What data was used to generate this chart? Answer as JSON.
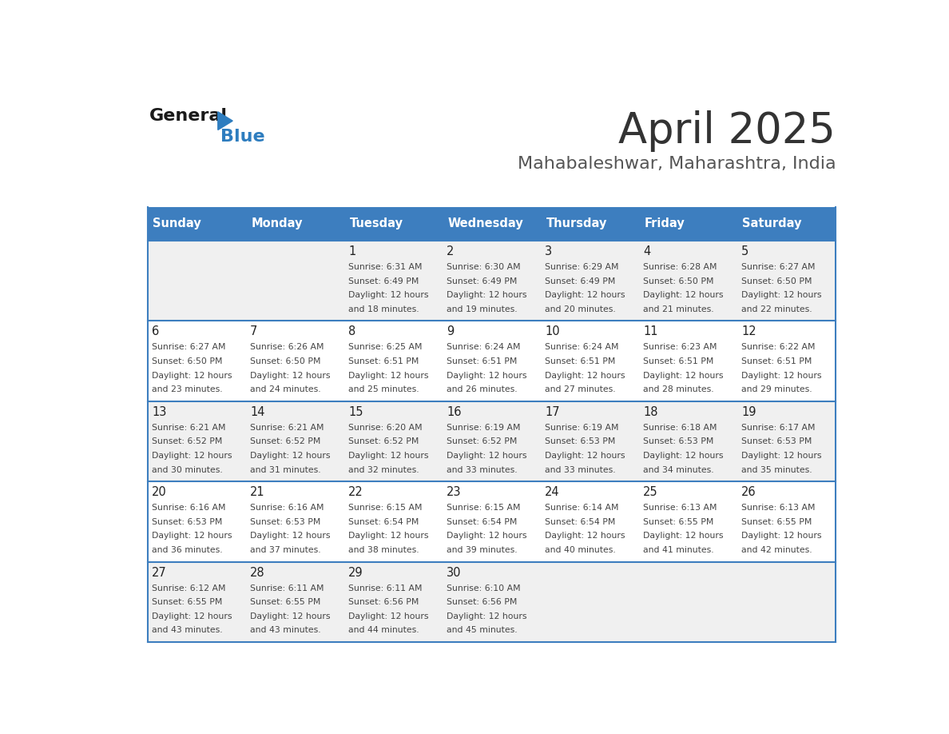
{
  "title": "April 2025",
  "subtitle": "Mahabaleshwar, Maharashtra, India",
  "days_of_week": [
    "Sunday",
    "Monday",
    "Tuesday",
    "Wednesday",
    "Thursday",
    "Friday",
    "Saturday"
  ],
  "header_bg_color": "#3d7ebf",
  "header_text_color": "#ffffff",
  "cell_bg_even": "#f0f0f0",
  "cell_bg_odd": "#ffffff",
  "row_line_color": "#3d7ebf",
  "title_color": "#333333",
  "subtitle_color": "#555555",
  "day_number_color": "#222222",
  "cell_text_color": "#444444",
  "calendar_data": [
    [
      null,
      null,
      {
        "day": 1,
        "sunrise": "6:31 AM",
        "sunset": "6:49 PM",
        "daylight_minutes": 18
      },
      {
        "day": 2,
        "sunrise": "6:30 AM",
        "sunset": "6:49 PM",
        "daylight_minutes": 19
      },
      {
        "day": 3,
        "sunrise": "6:29 AM",
        "sunset": "6:49 PM",
        "daylight_minutes": 20
      },
      {
        "day": 4,
        "sunrise": "6:28 AM",
        "sunset": "6:50 PM",
        "daylight_minutes": 21
      },
      {
        "day": 5,
        "sunrise": "6:27 AM",
        "sunset": "6:50 PM",
        "daylight_minutes": 22
      }
    ],
    [
      {
        "day": 6,
        "sunrise": "6:27 AM",
        "sunset": "6:50 PM",
        "daylight_minutes": 23
      },
      {
        "day": 7,
        "sunrise": "6:26 AM",
        "sunset": "6:50 PM",
        "daylight_minutes": 24
      },
      {
        "day": 8,
        "sunrise": "6:25 AM",
        "sunset": "6:51 PM",
        "daylight_minutes": 25
      },
      {
        "day": 9,
        "sunrise": "6:24 AM",
        "sunset": "6:51 PM",
        "daylight_minutes": 26
      },
      {
        "day": 10,
        "sunrise": "6:24 AM",
        "sunset": "6:51 PM",
        "daylight_minutes": 27
      },
      {
        "day": 11,
        "sunrise": "6:23 AM",
        "sunset": "6:51 PM",
        "daylight_minutes": 28
      },
      {
        "day": 12,
        "sunrise": "6:22 AM",
        "sunset": "6:51 PM",
        "daylight_minutes": 29
      }
    ],
    [
      {
        "day": 13,
        "sunrise": "6:21 AM",
        "sunset": "6:52 PM",
        "daylight_minutes": 30
      },
      {
        "day": 14,
        "sunrise": "6:21 AM",
        "sunset": "6:52 PM",
        "daylight_minutes": 31
      },
      {
        "day": 15,
        "sunrise": "6:20 AM",
        "sunset": "6:52 PM",
        "daylight_minutes": 32
      },
      {
        "day": 16,
        "sunrise": "6:19 AM",
        "sunset": "6:52 PM",
        "daylight_minutes": 33
      },
      {
        "day": 17,
        "sunrise": "6:19 AM",
        "sunset": "6:53 PM",
        "daylight_minutes": 33
      },
      {
        "day": 18,
        "sunrise": "6:18 AM",
        "sunset": "6:53 PM",
        "daylight_minutes": 34
      },
      {
        "day": 19,
        "sunrise": "6:17 AM",
        "sunset": "6:53 PM",
        "daylight_minutes": 35
      }
    ],
    [
      {
        "day": 20,
        "sunrise": "6:16 AM",
        "sunset": "6:53 PM",
        "daylight_minutes": 36
      },
      {
        "day": 21,
        "sunrise": "6:16 AM",
        "sunset": "6:53 PM",
        "daylight_minutes": 37
      },
      {
        "day": 22,
        "sunrise": "6:15 AM",
        "sunset": "6:54 PM",
        "daylight_minutes": 38
      },
      {
        "day": 23,
        "sunrise": "6:15 AM",
        "sunset": "6:54 PM",
        "daylight_minutes": 39
      },
      {
        "day": 24,
        "sunrise": "6:14 AM",
        "sunset": "6:54 PM",
        "daylight_minutes": 40
      },
      {
        "day": 25,
        "sunrise": "6:13 AM",
        "sunset": "6:55 PM",
        "daylight_minutes": 41
      },
      {
        "day": 26,
        "sunrise": "6:13 AM",
        "sunset": "6:55 PM",
        "daylight_minutes": 42
      }
    ],
    [
      {
        "day": 27,
        "sunrise": "6:12 AM",
        "sunset": "6:55 PM",
        "daylight_minutes": 43
      },
      {
        "day": 28,
        "sunrise": "6:11 AM",
        "sunset": "6:55 PM",
        "daylight_minutes": 43
      },
      {
        "day": 29,
        "sunrise": "6:11 AM",
        "sunset": "6:56 PM",
        "daylight_minutes": 44
      },
      {
        "day": 30,
        "sunrise": "6:10 AM",
        "sunset": "6:56 PM",
        "daylight_minutes": 45
      },
      null,
      null,
      null
    ]
  ]
}
